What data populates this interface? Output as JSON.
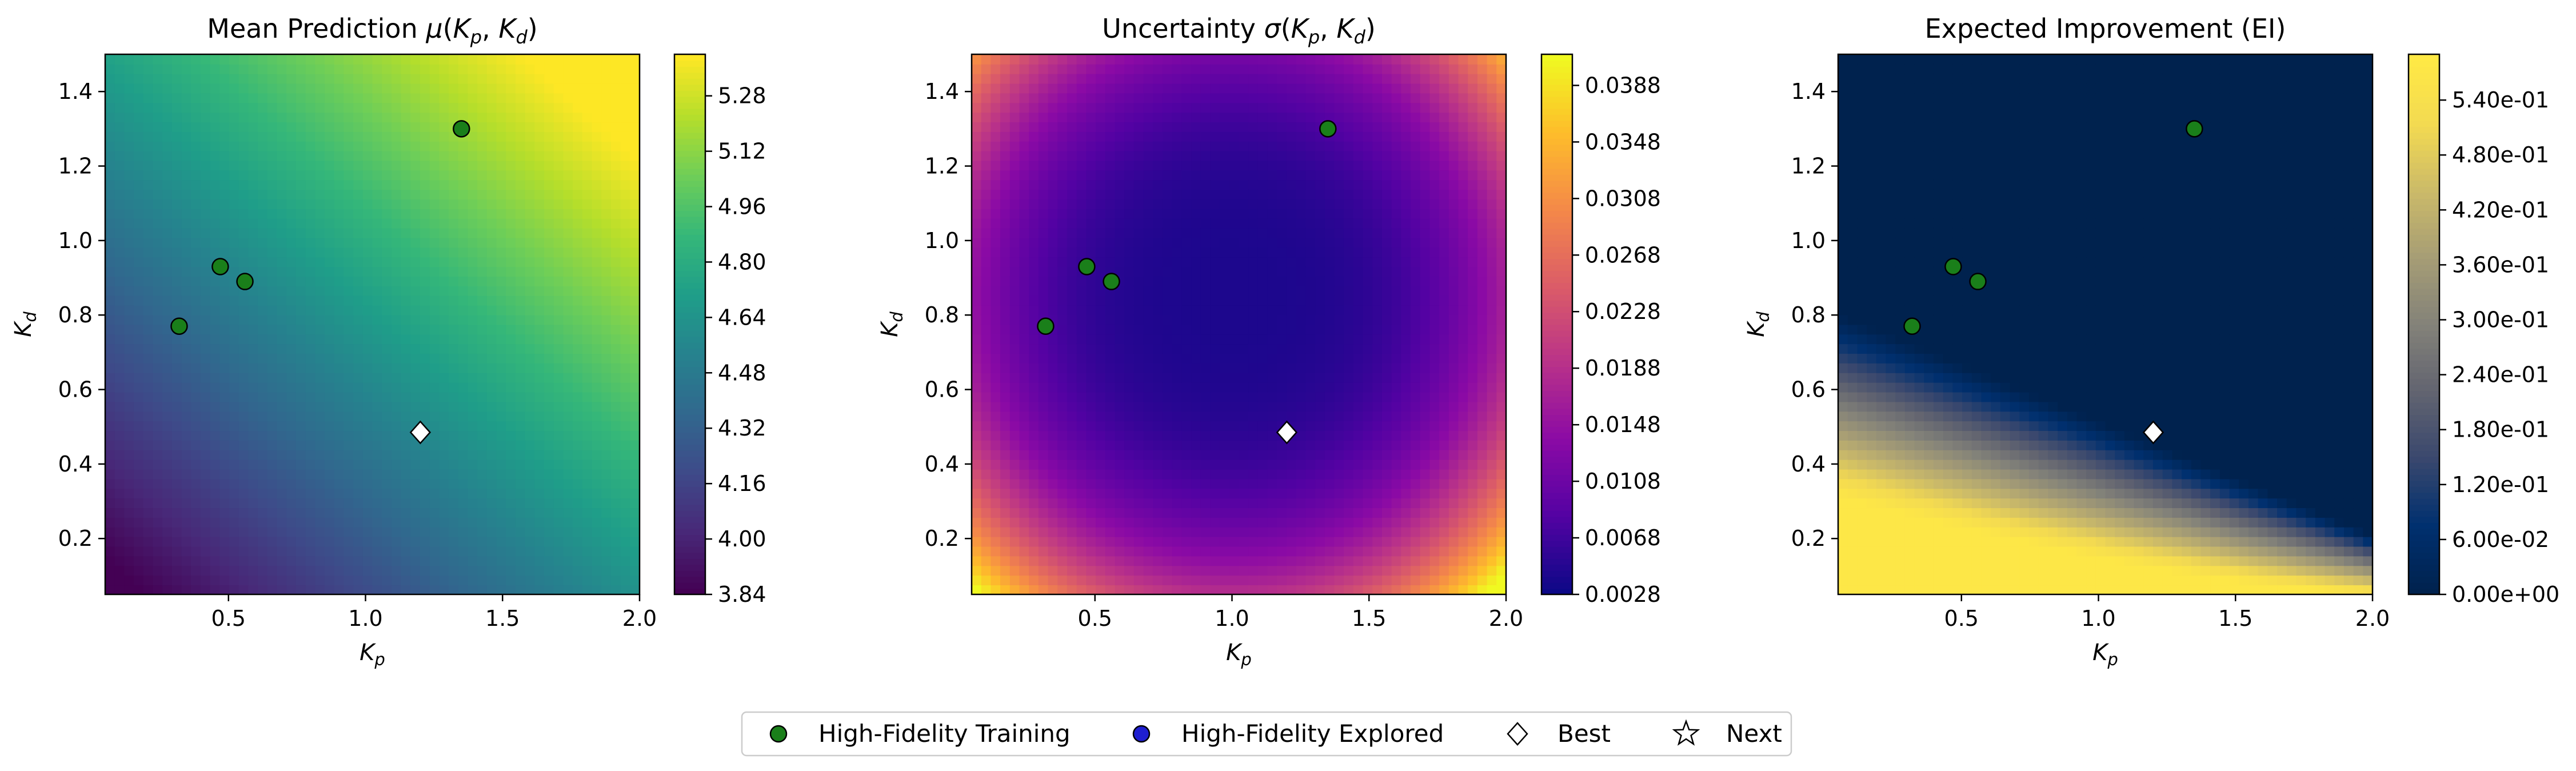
{
  "chart_data": [
    {
      "type": "heatmap",
      "title": "Mean Prediction μ(K_p, K_d)",
      "title_base": "Mean Prediction",
      "title_math": {
        "sym": "μ",
        "a": "K",
        "a_sub": "p",
        "b": "K",
        "b_sub": "d"
      },
      "xlabel": "K_p",
      "ylabel": "K_d",
      "xlim": [
        0.05,
        2.0
      ],
      "ylim": [
        0.05,
        1.5
      ],
      "x_ticks": [
        "0.5",
        "1.0",
        "1.5",
        "2.0"
      ],
      "y_ticks": [
        "0.2",
        "0.4",
        "0.6",
        "0.8",
        "1.0",
        "1.2",
        "1.4"
      ],
      "colormap": "viridis",
      "colorbar_range": [
        3.84,
        5.4
      ],
      "colorbar_ticks": [
        "3.84",
        "4.00",
        "4.16",
        "4.32",
        "4.48",
        "4.64",
        "4.80",
        "4.96",
        "5.12",
        "5.28"
      ],
      "surface": {
        "base": 3.72,
        "kx": 0.44,
        "ky": 0.66,
        "pow": 0.95
      }
    },
    {
      "type": "heatmap",
      "title": "Uncertainty σ(K_p, K_d)",
      "title_base": "Uncertainty",
      "title_math": {
        "sym": "σ",
        "a": "K",
        "a_sub": "p",
        "b": "K",
        "b_sub": "d"
      },
      "xlabel": "K_p",
      "ylabel": "K_d",
      "xlim": [
        0.05,
        2.0
      ],
      "ylim": [
        0.05,
        1.5
      ],
      "x_ticks": [
        "0.5",
        "1.0",
        "1.5",
        "2.0"
      ],
      "y_ticks": [
        "0.2",
        "0.4",
        "0.6",
        "0.8",
        "1.0",
        "1.2",
        "1.4"
      ],
      "colormap": "plasma",
      "colorbar_range": [
        0.0028,
        0.041
      ],
      "colorbar_ticks": [
        "0.0028",
        "0.0068",
        "0.0108",
        "0.0148",
        "0.0188",
        "0.0228",
        "0.0268",
        "0.0308",
        "0.0348",
        "0.0388"
      ],
      "surface": {
        "center": [
          1.0,
          0.85
        ],
        "sx": 1.02,
        "sy": 0.78,
        "pow": 3.2,
        "base": 0.004,
        "scale": 0.036
      }
    },
    {
      "type": "heatmap",
      "title": "Expected Improvement (EI)",
      "xlabel": "K_p",
      "ylabel": "K_d",
      "xlim": [
        0.05,
        2.0
      ],
      "ylim": [
        0.05,
        1.5
      ],
      "x_ticks": [
        "0.5",
        "1.0",
        "1.5",
        "2.0"
      ],
      "y_ticks": [
        "0.2",
        "0.4",
        "0.6",
        "0.8",
        "1.0",
        "1.2",
        "1.4"
      ],
      "colormap": "cividis",
      "colorbar_range": [
        0.0,
        0.59
      ],
      "colorbar_ticks": [
        "0.00e+00",
        "6.00e-02",
        "1.20e-01",
        "1.80e-01",
        "2.40e-01",
        "3.00e-01",
        "3.60e-01",
        "4.20e-01",
        "4.80e-01",
        "5.40e-01"
      ],
      "surface": {
        "edge": 0.82,
        "slope": 0.305,
        "scale": 1.55,
        "peak": 0.58
      }
    }
  ],
  "points": {
    "high_fidelity_training": [
      {
        "x": 0.32,
        "y": 0.77
      },
      {
        "x": 0.47,
        "y": 0.93
      },
      {
        "x": 0.56,
        "y": 0.89
      },
      {
        "x": 1.35,
        "y": 1.3
      }
    ],
    "best": {
      "x": 1.2,
      "y": 0.485
    }
  },
  "legend": {
    "items": [
      {
        "label": "High-Fidelity Training",
        "marker": "circle",
        "color": "#1a7f1a"
      },
      {
        "label": "High-Fidelity Explored",
        "marker": "circle",
        "color": "#1f1fd0"
      },
      {
        "label": "Best",
        "marker": "diamond",
        "color": "#ffffff"
      },
      {
        "label": "Next",
        "marker": "star",
        "color": "#ffffff"
      }
    ]
  }
}
